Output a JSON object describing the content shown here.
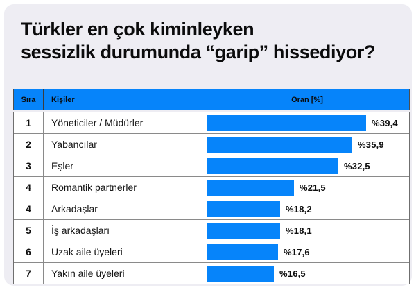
{
  "title": {
    "line1": "Türkler en çok kiminleyken",
    "line2": "sessizlik durumunda “garip” hissediyor?"
  },
  "table": {
    "headers": {
      "rank": "Sıra",
      "people": "Kişiler",
      "share": "Oran [%]"
    },
    "rows": [
      {
        "rank": "1",
        "label": "Yöneticiler / Müdürler",
        "value_label": "%39,4"
      },
      {
        "rank": "2",
        "label": "Yabancılar",
        "value_label": "%35,9"
      },
      {
        "rank": "3",
        "label": "Eşler",
        "value_label": "%32,5"
      },
      {
        "rank": "4",
        "label": "Romantik partnerler",
        "value_label": "%21,5"
      },
      {
        "rank": "4",
        "label": "Arkadaşlar",
        "value_label": "%18,2"
      },
      {
        "rank": "5",
        "label": "İş arkadaşları",
        "value_label": "%18,1"
      },
      {
        "rank": "6",
        "label": "Uzak aile üyeleri",
        "value_label": "%17,6"
      },
      {
        "rank": "7",
        "label": "Yakın aile üyeleri",
        "value_label": "%16,5"
      }
    ]
  },
  "colors": {
    "accent_blue": "#0684fa",
    "card_background": "#eeedf3",
    "row_background": "#ffffff",
    "border_dark": "#4e4e4e",
    "border_light": "#8a8a8a",
    "text_dark": "#0b0b0c"
  },
  "chart_data": {
    "type": "bar",
    "orientation": "horizontal",
    "title": "Türkler en çok kiminleyken sessizlik durumunda “garip” hissediyor?",
    "columns": [
      "Sıra",
      "Kişiler",
      "Oran [%]"
    ],
    "categories": [
      "Yöneticiler / Müdürler",
      "Yabancılar",
      "Eşler",
      "Romantik partnerler",
      "Arkadaşlar",
      "İş arkadaşları",
      "Uzak aile üyeleri",
      "Yakın aile üyeleri"
    ],
    "ranks": [
      1,
      2,
      3,
      4,
      4,
      5,
      6,
      7
    ],
    "values": [
      39.4,
      35.9,
      32.5,
      21.5,
      18.2,
      18.1,
      17.6,
      16.5
    ],
    "value_labels": [
      "%39,4",
      "%35,9",
      "%32,5",
      "%21,5",
      "%18,2",
      "%18,1",
      "%17,6",
      "%16,5"
    ],
    "xlabel": "Oran [%]",
    "xlim": [
      0,
      45
    ],
    "grid": false,
    "legend": false,
    "bar_color": "#0684fa"
  }
}
